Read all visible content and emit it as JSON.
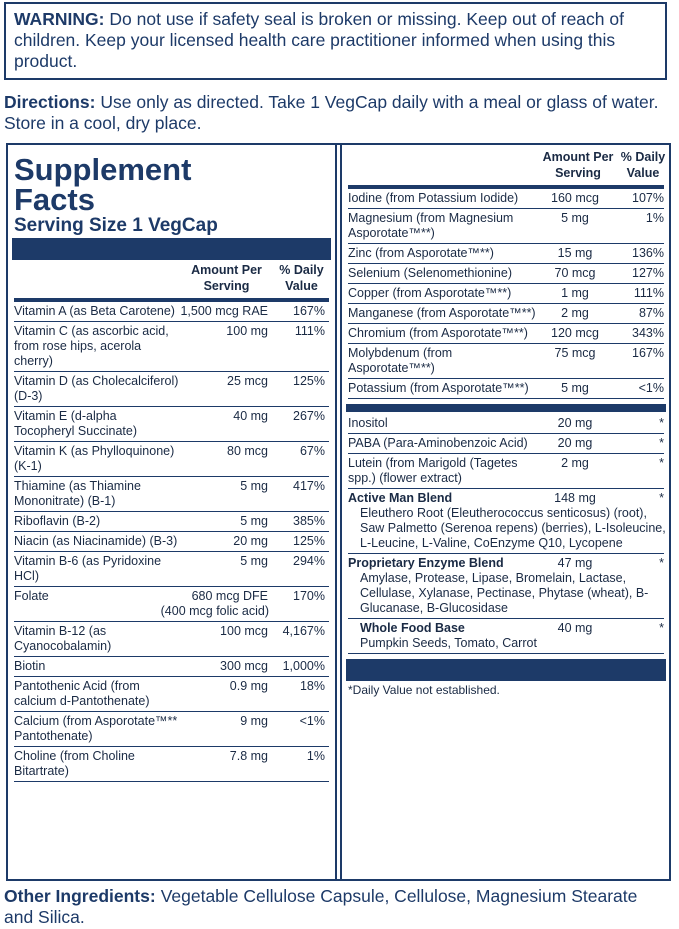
{
  "warning": {
    "label": "WARNING:",
    "text": "Do not use if safety seal is broken or missing. Keep out of reach of children. Keep your licensed health care practitioner informed when using this product."
  },
  "directions": {
    "label": "Directions:",
    "text": "Use only as directed. Take 1 VegCap daily with a meal or glass of water. Store in a cool, dry place."
  },
  "facts": {
    "title": "Supplement Facts",
    "serving_size": "Serving Size 1 VegCap",
    "left": {
      "header": {
        "amount": "Amount Per Serving",
        "dv": "% Daily Value"
      },
      "rows": [
        {
          "name": "Vitamin A (as Beta Carotene)",
          "amount": "1,500 mcg RAE",
          "dv": "167%"
        },
        {
          "name": "Vitamin C (as ascorbic acid, from rose hips, acerola cherry)",
          "amount": "100 mg",
          "dv": "111%"
        },
        {
          "name": "Vitamin D (as Cholecalciferol) (D-3)",
          "amount": "25 mcg",
          "dv": "125%"
        },
        {
          "name": "Vitamin E (d-alpha Tocopheryl Succinate)",
          "amount": "40 mg",
          "dv": "267%"
        },
        {
          "name": "Vitamin K (as Phylloquinone) (K-1)",
          "amount": "80 mcg",
          "dv": "67%"
        },
        {
          "name": "Thiamine (as Thiamine Mononitrate) (B-1)",
          "amount": "5 mg",
          "dv": "417%"
        },
        {
          "name": "Riboflavin (B-2)",
          "amount": "5 mg",
          "dv": "385%"
        },
        {
          "name": "Niacin (as Niacinamide) (B-3)",
          "amount": "20 mg",
          "dv": "125%"
        },
        {
          "name": "Vitamin B-6 (as Pyridoxine HCl)",
          "amount": "5 mg",
          "dv": "294%"
        },
        {
          "name": "Folate",
          "amount": "680 mcg DFE",
          "dv": "170%",
          "note": "(400 mcg folic acid)"
        },
        {
          "name": "Vitamin B-12 (as Cyanocobalamin)",
          "amount": "100 mcg",
          "dv": "4,167%"
        },
        {
          "name": "Biotin",
          "amount": "300 mcg",
          "dv": "1,000%"
        },
        {
          "name": "Pantothenic Acid (from calcium d-Pantothenate)",
          "amount": "0.9 mg",
          "dv": "18%"
        },
        {
          "name": "Calcium (from Asporotate™** Pantothenate)",
          "amount": "9 mg",
          "dv": "<1%"
        },
        {
          "name": "Choline (from Choline Bitartrate)",
          "amount": "7.8 mg",
          "dv": "1%"
        }
      ]
    },
    "right": {
      "header": {
        "amount": "Amount Per Serving",
        "dv": "% Daily Value"
      },
      "rows": [
        {
          "name": "Iodine (from Potassium Iodide)",
          "amount": "160 mcg",
          "dv": "107%"
        },
        {
          "name": "Magnesium (from Magnesium Asporotate™**)",
          "amount": "5 mg",
          "dv": "1%"
        },
        {
          "name": "Zinc (from Asporotate™**)",
          "amount": "15 mg",
          "dv": "136%"
        },
        {
          "name": "Selenium (Selenomethionine)",
          "amount": "70 mcg",
          "dv": "127%"
        },
        {
          "name": "Copper (from Asporotate™**)",
          "amount": "1 mg",
          "dv": "111%"
        },
        {
          "name": "Manganese (from Asporotate™**)",
          "amount": "2 mg",
          "dv": "87%"
        },
        {
          "name": "Chromium (from Asporotate™**)",
          "amount": "120 mcg",
          "dv": "343%"
        },
        {
          "name": "Molybdenum (from Asporotate™**)",
          "amount": "75 mcg",
          "dv": "167%"
        },
        {
          "name": "Potassium (from Asporotate™**)",
          "amount": "5 mg",
          "dv": "<1%"
        }
      ],
      "others": [
        {
          "name": "Inositol",
          "amount": "20 mg",
          "dv": "*"
        },
        {
          "name": "PABA (Para-Aminobenzoic Acid)",
          "amount": "20 mg",
          "dv": "*"
        },
        {
          "name": "Lutein (from Marigold (Tagetes spp.) (flower extract)",
          "amount": "2 mg",
          "dv": "*"
        },
        {
          "name": "Active Man Blend",
          "amount": "148 mg",
          "dv": "*",
          "detail": "Eleuthero Root (Eleutherococcus senticosus) (root), Saw Palmetto (Serenoa repens) (berries), L-Isoleucine, L-Leucine, L-Valine, CoEnzyme Q10, Lycopene"
        },
        {
          "name": "Proprietary Enzyme Blend",
          "amount": "47 mg",
          "dv": "*",
          "detail": "Amylase, Protease, Lipase, Bromelain, Lactase, Cellulase, Xylanase, Pectinase, Phytase (wheat), B-Glucanase, B-Glucosidase"
        },
        {
          "name": "Whole Food Base",
          "amount": "40 mg",
          "dv": "*",
          "detail": "Pumpkin Seeds, Tomato, Carrot"
        }
      ],
      "footnote": "*Daily Value not established."
    }
  },
  "other_ingredients": {
    "label": "Other Ingredients:",
    "text": "Vegetable Cellulose Capsule, Cellulose, Magnesium Stearate and Silica."
  }
}
